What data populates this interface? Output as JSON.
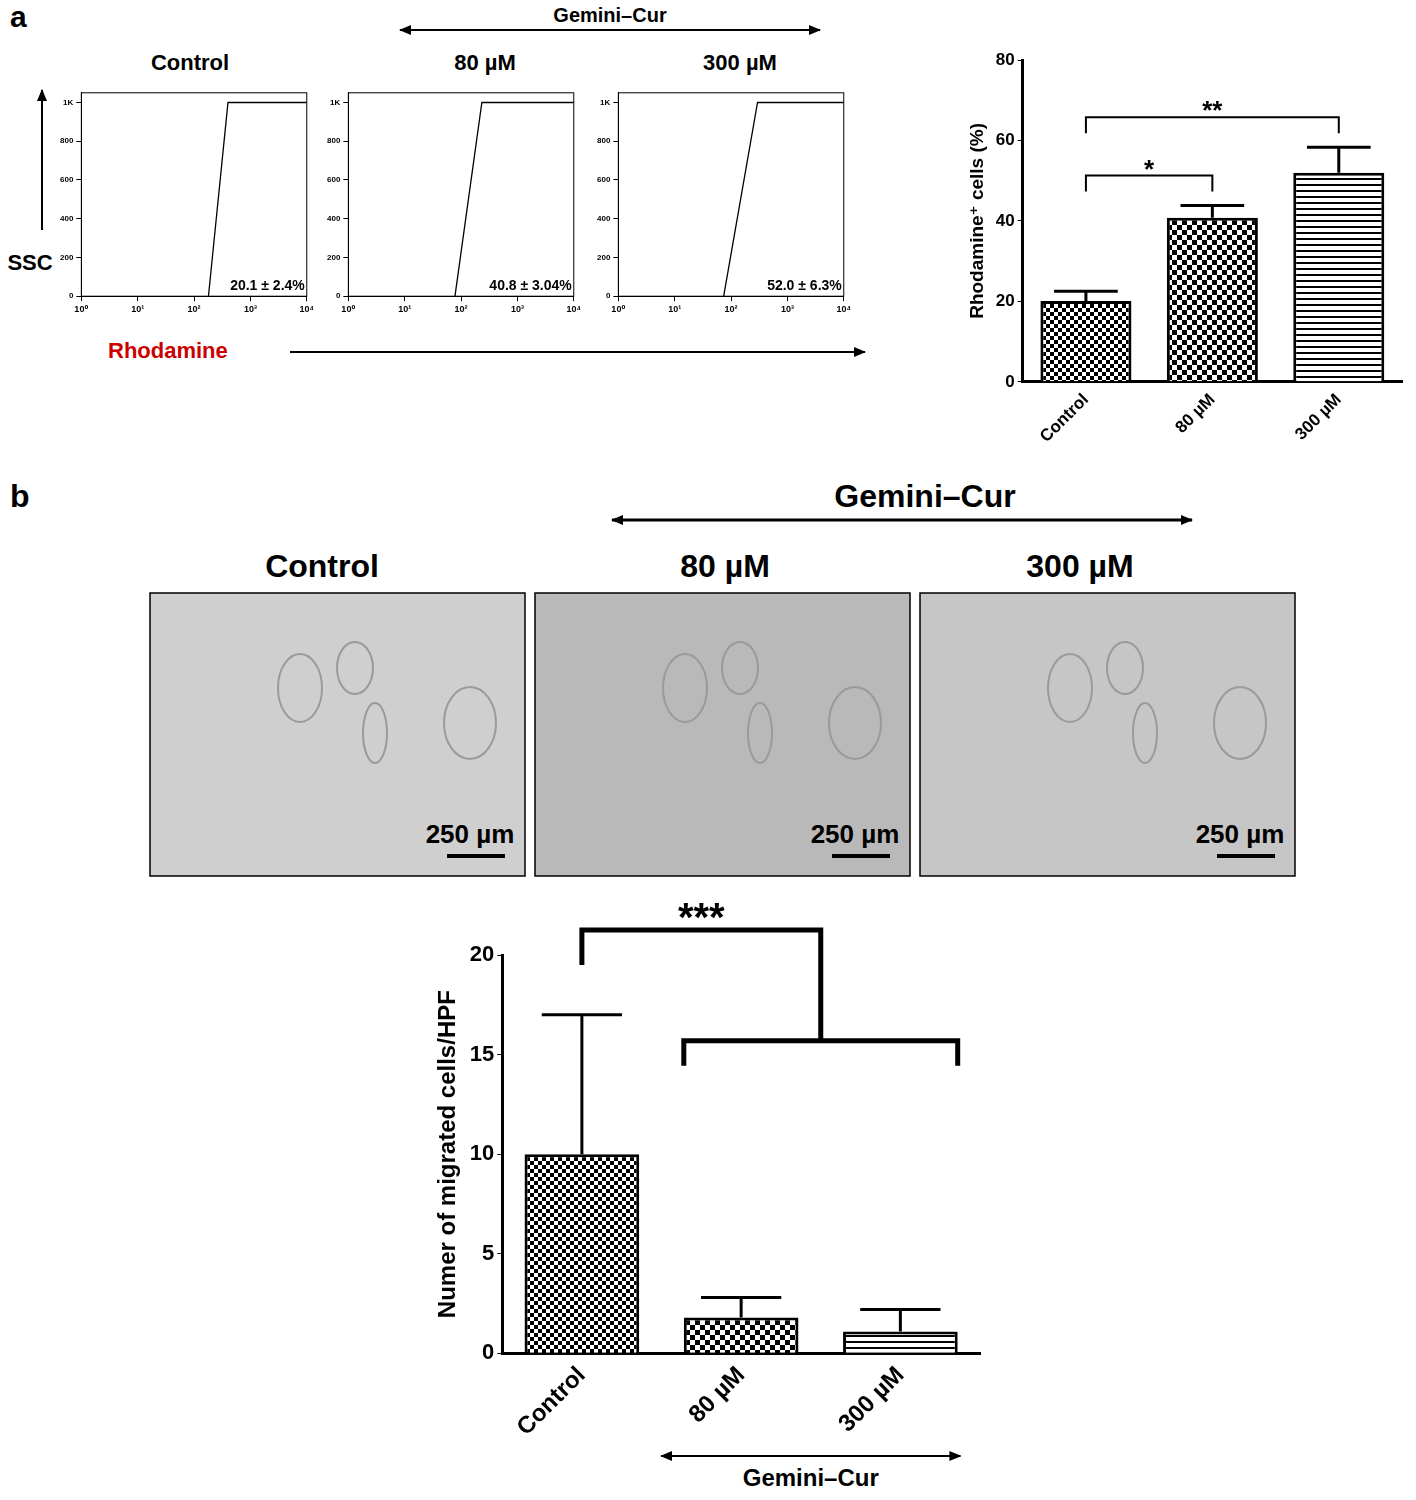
{
  "figure": {
    "panel_labels": [
      "a",
      "b"
    ],
    "treatment": "Gemini–Cur"
  },
  "flow": {
    "y_label": "SSC",
    "x_label": "Rhodamine"
  },
  "images": {
    "titles": [
      "Control",
      "80 µM",
      "300 µM"
    ],
    "scale_bar": "250 µm"
  },
  "chart_data": [
    {
      "type": "scatter",
      "title": "Control",
      "log": "x",
      "grid": false,
      "xlim": [
        1,
        10000
      ],
      "xticks": [
        {
          "value": 1,
          "label": "10⁰"
        },
        {
          "value": 10,
          "label": "10¹"
        },
        {
          "value": 100,
          "label": "10²"
        },
        {
          "value": 1000,
          "label": "10³"
        },
        {
          "value": 10000,
          "label": "10⁴"
        }
      ],
      "ylim": [
        0,
        1050
      ],
      "yticks": [
        0,
        200,
        400,
        600,
        800,
        {
          "value": 1000,
          "label": "1K"
        }
      ],
      "annotation": "20.1 ± 2.4%",
      "series": [
        {
          "type": "line",
          "color": "#000000",
          "x": [
            180,
            400,
            10000
          ],
          "values": [
            0,
            1000,
            1000
          ]
        }
      ]
    },
    {
      "type": "scatter",
      "title": "80 µM",
      "log": "x",
      "grid": false,
      "xlim": [
        1,
        10000
      ],
      "xticks": [
        {
          "value": 1,
          "label": "10⁰"
        },
        {
          "value": 10,
          "label": "10¹"
        },
        {
          "value": 100,
          "label": "10²"
        },
        {
          "value": 1000,
          "label": "10³"
        },
        {
          "value": 10000,
          "label": "10⁴"
        }
      ],
      "ylim": [
        0,
        1050
      ],
      "yticks": [
        0,
        200,
        400,
        600,
        800,
        {
          "value": 1000,
          "label": "1K"
        }
      ],
      "annotation": "40.8 ± 3.04%",
      "series": [
        {
          "type": "line",
          "color": "#000000",
          "x": [
            78,
            234,
            10000
          ],
          "values": [
            0,
            1000,
            1000
          ]
        }
      ]
    },
    {
      "type": "scatter",
      "title": "300 µM",
      "log": "x",
      "grid": false,
      "xlim": [
        1,
        10000
      ],
      "xticks": [
        {
          "value": 1,
          "label": "10⁰"
        },
        {
          "value": 10,
          "label": "10¹"
        },
        {
          "value": 100,
          "label": "10²"
        },
        {
          "value": 1000,
          "label": "10³"
        },
        {
          "value": 10000,
          "label": "10⁴"
        }
      ],
      "ylim": [
        0,
        1050
      ],
      "yticks": [
        0,
        200,
        400,
        600,
        800,
        {
          "value": 1000,
          "label": "1K"
        }
      ],
      "annotation": "52.0 ± 6.3%",
      "series": [
        {
          "type": "line",
          "color": "#000000",
          "x": [
            74,
            295,
            10000
          ],
          "values": [
            0,
            1000,
            1000
          ]
        }
      ]
    },
    {
      "type": "bar",
      "categories": [
        "Control",
        "80 µM",
        "300 µM"
      ],
      "values": [
        20.1,
        40.8,
        52.0
      ],
      "errors": [
        2.4,
        3.04,
        6.3
      ],
      "color": "#000000",
      "ylim": [
        0,
        80
      ],
      "yticks": [
        0,
        20,
        40,
        60,
        80
      ],
      "grid": false,
      "y_label": "Rhodamine⁺ cells (%)",
      "significance": [
        {
          "from": [
            0
          ],
          "to": [
            1
          ],
          "label": "*"
        },
        {
          "from": [
            0
          ],
          "to": [
            2
          ],
          "label": "**"
        }
      ]
    },
    {
      "type": "bar",
      "categories": [
        "Control",
        "80 µM",
        "300 µM"
      ],
      "values": [
        10,
        1.8,
        1.1
      ],
      "errors": [
        7.0,
        1.0,
        1.1
      ],
      "color": "#000000",
      "ylim": [
        0,
        20
      ],
      "yticks": [
        0,
        5,
        10,
        15,
        20
      ],
      "grid": false,
      "y_label": "Numer of migrated cells/HPF",
      "significance": [
        {
          "from": [
            0
          ],
          "to": [
            1,
            2
          ],
          "label": "***"
        }
      ]
    }
  ]
}
